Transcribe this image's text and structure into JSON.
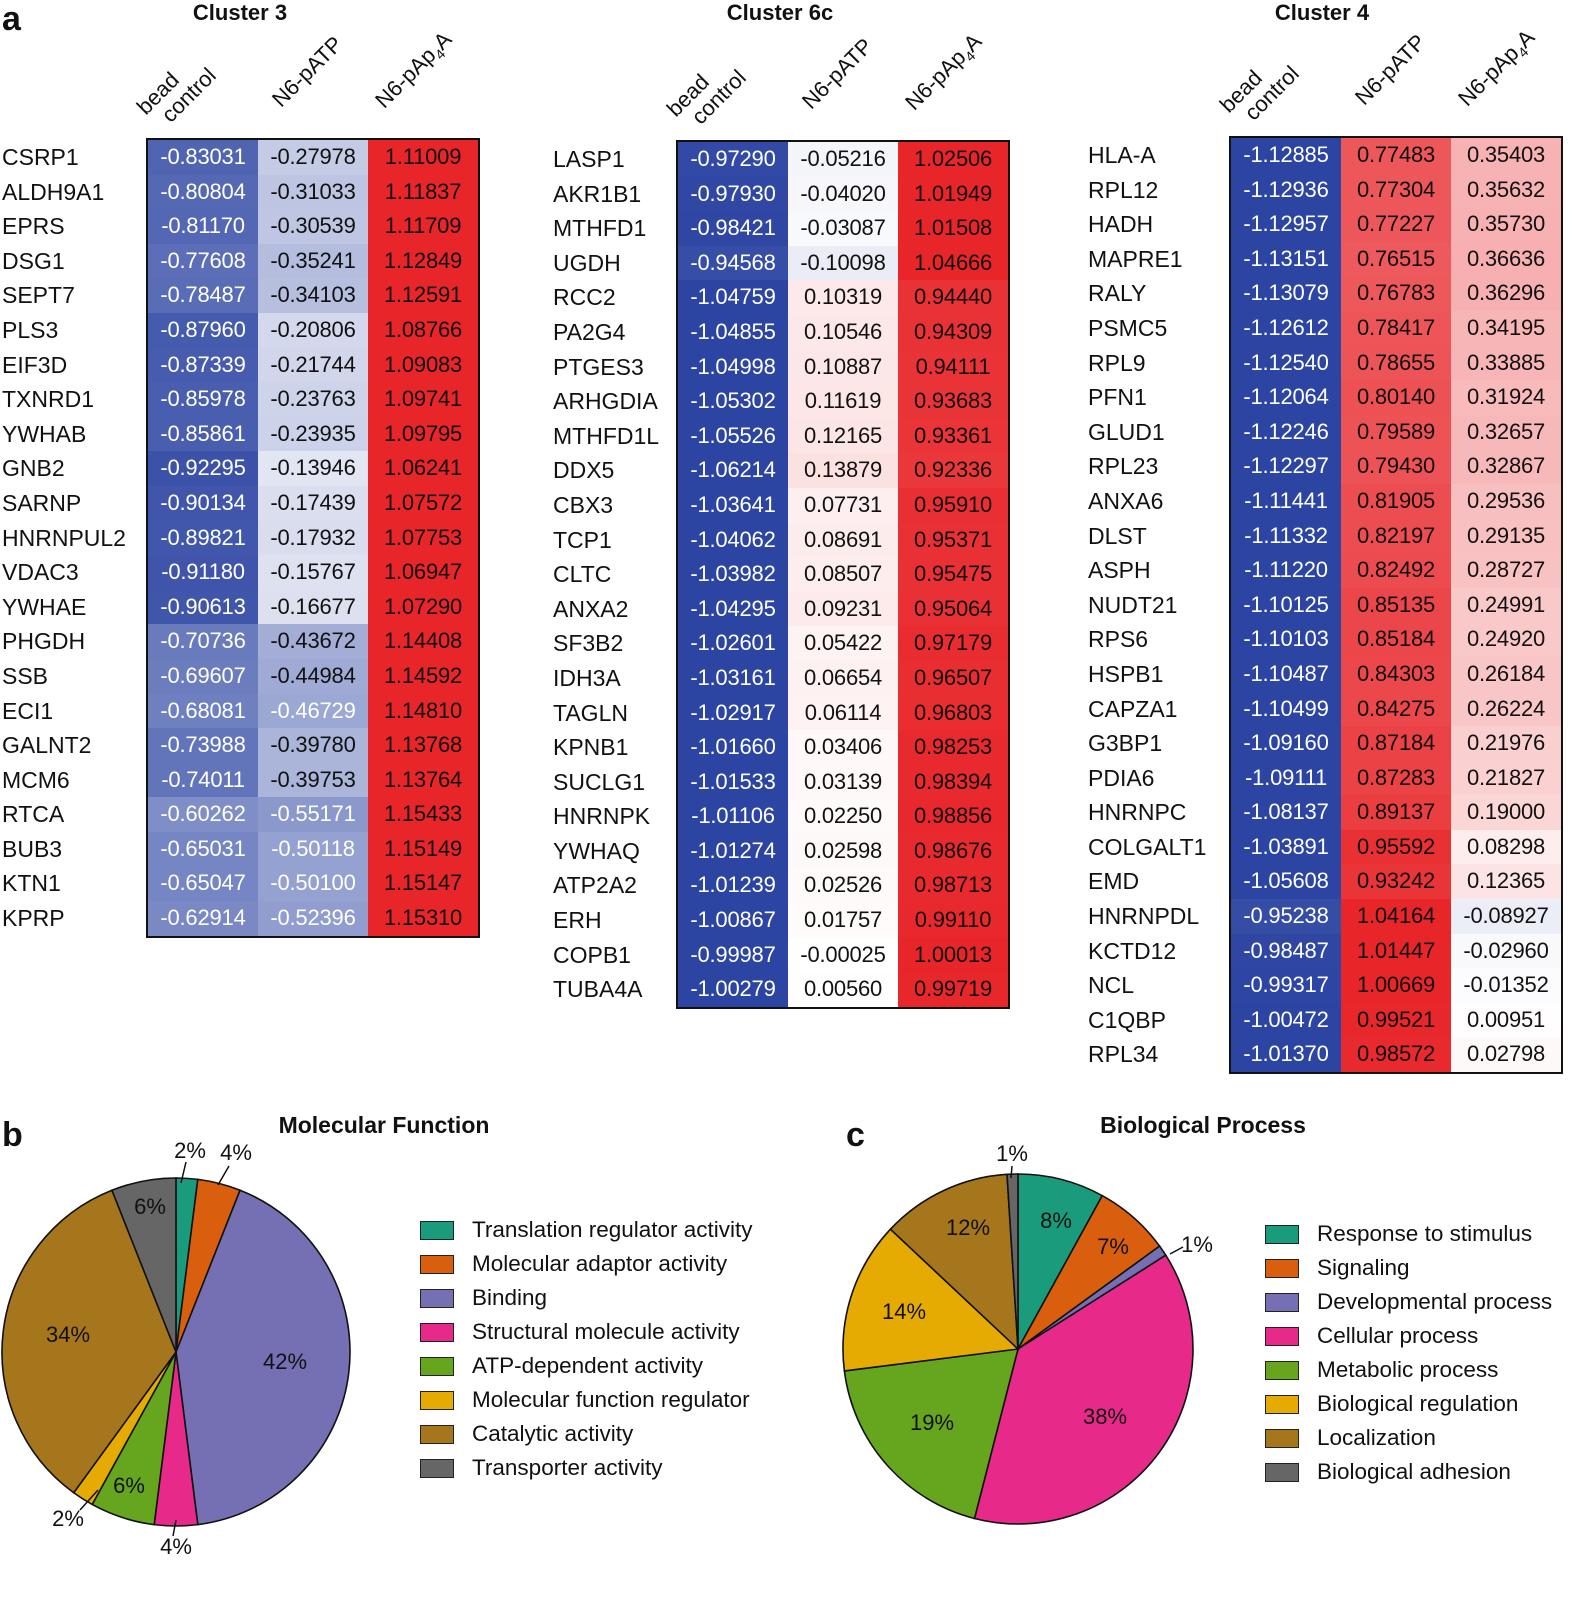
{
  "panel_letters": {
    "a": "a",
    "b": "b",
    "c": "c"
  },
  "column_headers": {
    "bead": "bead",
    "control": "control",
    "n6patp": "N6-pATP",
    "n6pap4a_base": "N6-pAp",
    "n6pap4a_sub": "4",
    "n6pap4a_tail": "A"
  },
  "color_scale": {
    "blue": "#2c44a2",
    "white": "#ffffff",
    "red": "#e8262a"
  },
  "chart_data": [
    {
      "type": "heatmap",
      "title": "Cluster 3",
      "columns": [
        "bead control",
        "N6-pATP",
        "N6-pAp4A"
      ],
      "rows": [
        {
          "label": "CSRP1",
          "values": [
            "-0.83031",
            "-0.27978",
            "1.11009"
          ]
        },
        {
          "label": "ALDH9A1",
          "values": [
            "-0.80804",
            "-0.31033",
            "1.11837"
          ]
        },
        {
          "label": "EPRS",
          "values": [
            "-0.81170",
            "-0.30539",
            "1.11709"
          ]
        },
        {
          "label": "DSG1",
          "values": [
            "-0.77608",
            "-0.35241",
            "1.12849"
          ]
        },
        {
          "label": "SEPT7",
          "values": [
            "-0.78487",
            "-0.34103",
            "1.12591"
          ]
        },
        {
          "label": "PLS3",
          "values": [
            "-0.87960",
            "-0.20806",
            "1.08766"
          ]
        },
        {
          "label": "EIF3D",
          "values": [
            "-0.87339",
            "-0.21744",
            "1.09083"
          ]
        },
        {
          "label": "TXNRD1",
          "values": [
            "-0.85978",
            "-0.23763",
            "1.09741"
          ]
        },
        {
          "label": "YWHAB",
          "values": [
            "-0.85861",
            "-0.23935",
            "1.09795"
          ]
        },
        {
          "label": "GNB2",
          "values": [
            "-0.92295",
            "-0.13946",
            "1.06241"
          ]
        },
        {
          "label": "SARNP",
          "values": [
            "-0.90134",
            "-0.17439",
            "1.07572"
          ]
        },
        {
          "label": "HNRNPUL2",
          "values": [
            "-0.89821",
            "-0.17932",
            "1.07753"
          ]
        },
        {
          "label": "VDAC3",
          "values": [
            "-0.91180",
            "-0.15767",
            "1.06947"
          ]
        },
        {
          "label": "YWHAE",
          "values": [
            "-0.90613",
            "-0.16677",
            "1.07290"
          ]
        },
        {
          "label": "PHGDH",
          "values": [
            "-0.70736",
            "-0.43672",
            "1.14408"
          ]
        },
        {
          "label": "SSB",
          "values": [
            "-0.69607",
            "-0.44984",
            "1.14592"
          ]
        },
        {
          "label": "ECI1",
          "values": [
            "-0.68081",
            "-0.46729",
            "1.14810"
          ]
        },
        {
          "label": "GALNT2",
          "values": [
            "-0.73988",
            "-0.39780",
            "1.13768"
          ]
        },
        {
          "label": "MCM6",
          "values": [
            "-0.74011",
            "-0.39753",
            "1.13764"
          ]
        },
        {
          "label": "RTCA",
          "values": [
            "-0.60262",
            "-0.55171",
            "1.15433"
          ]
        },
        {
          "label": "BUB3",
          "values": [
            "-0.65031",
            "-0.50118",
            "1.15149"
          ]
        },
        {
          "label": "KTN1",
          "values": [
            "-0.65047",
            "-0.50100",
            "1.15147"
          ]
        },
        {
          "label": "KPRP",
          "values": [
            "-0.62914",
            "-0.52396",
            "1.15310"
          ]
        }
      ]
    },
    {
      "type": "heatmap",
      "title": "Cluster 6c",
      "columns": [
        "bead control",
        "N6-pATP",
        "N6-pAp4A"
      ],
      "rows": [
        {
          "label": "LASP1",
          "values": [
            "-0.97290",
            "-0.05216",
            "1.02506"
          ]
        },
        {
          "label": "AKR1B1",
          "values": [
            "-0.97930",
            "-0.04020",
            "1.01949"
          ]
        },
        {
          "label": "MTHFD1",
          "values": [
            "-0.98421",
            "-0.03087",
            "1.01508"
          ]
        },
        {
          "label": "UGDH",
          "values": [
            "-0.94568",
            "-0.10098",
            "1.04666"
          ]
        },
        {
          "label": "RCC2",
          "values": [
            "-1.04759",
            "0.10319",
            "0.94440"
          ]
        },
        {
          "label": "PA2G4",
          "values": [
            "-1.04855",
            "0.10546",
            "0.94309"
          ]
        },
        {
          "label": "PTGES3",
          "values": [
            "-1.04998",
            "0.10887",
            "0.94111"
          ]
        },
        {
          "label": "ARHGDIA",
          "values": [
            "-1.05302",
            "0.11619",
            "0.93683"
          ]
        },
        {
          "label": "MTHFD1L",
          "values": [
            "-1.05526",
            "0.12165",
            "0.93361"
          ]
        },
        {
          "label": "DDX5",
          "values": [
            "-1.06214",
            "0.13879",
            "0.92336"
          ]
        },
        {
          "label": "CBX3",
          "values": [
            "-1.03641",
            "0.07731",
            "0.95910"
          ]
        },
        {
          "label": "TCP1",
          "values": [
            "-1.04062",
            "0.08691",
            "0.95371"
          ]
        },
        {
          "label": "CLTC",
          "values": [
            "-1.03982",
            "0.08507",
            "0.95475"
          ]
        },
        {
          "label": "ANXA2",
          "values": [
            "-1.04295",
            "0.09231",
            "0.95064"
          ]
        },
        {
          "label": "SF3B2",
          "values": [
            "-1.02601",
            "0.05422",
            "0.97179"
          ]
        },
        {
          "label": "IDH3A",
          "values": [
            "-1.03161",
            "0.06654",
            "0.96507"
          ]
        },
        {
          "label": "TAGLN",
          "values": [
            "-1.02917",
            "0.06114",
            "0.96803"
          ]
        },
        {
          "label": "KPNB1",
          "values": [
            "-1.01660",
            "0.03406",
            "0.98253"
          ]
        },
        {
          "label": "SUCLG1",
          "values": [
            "-1.01533",
            "0.03139",
            "0.98394"
          ]
        },
        {
          "label": "HNRNPK",
          "values": [
            "-1.01106",
            "0.02250",
            "0.98856"
          ]
        },
        {
          "label": "YWHAQ",
          "values": [
            "-1.01274",
            "0.02598",
            "0.98676"
          ]
        },
        {
          "label": "ATP2A2",
          "values": [
            "-1.01239",
            "0.02526",
            "0.98713"
          ]
        },
        {
          "label": "ERH",
          "values": [
            "-1.00867",
            "0.01757",
            "0.99110"
          ]
        },
        {
          "label": "COPB1",
          "values": [
            "-0.99987",
            "-0.00025",
            "1.00013"
          ]
        },
        {
          "label": "TUBA4A",
          "values": [
            "-1.00279",
            "0.00560",
            "0.99719"
          ]
        }
      ]
    },
    {
      "type": "heatmap",
      "title": "Cluster 4",
      "columns": [
        "bead control",
        "N6-pATP",
        "N6-pAp4A"
      ],
      "rows": [
        {
          "label": "HLA-A",
          "values": [
            "-1.12885",
            "0.77483",
            "0.35403"
          ]
        },
        {
          "label": "RPL12",
          "values": [
            "-1.12936",
            "0.77304",
            "0.35632"
          ]
        },
        {
          "label": "HADH",
          "values": [
            "-1.12957",
            "0.77227",
            "0.35730"
          ]
        },
        {
          "label": "MAPRE1",
          "values": [
            "-1.13151",
            "0.76515",
            "0.36636"
          ]
        },
        {
          "label": "RALY",
          "values": [
            "-1.13079",
            "0.76783",
            "0.36296"
          ]
        },
        {
          "label": "PSMC5",
          "values": [
            "-1.12612",
            "0.78417",
            "0.34195"
          ]
        },
        {
          "label": "RPL9",
          "values": [
            "-1.12540",
            "0.78655",
            "0.33885"
          ]
        },
        {
          "label": "PFN1",
          "values": [
            "-1.12064",
            "0.80140",
            "0.31924"
          ]
        },
        {
          "label": "GLUD1",
          "values": [
            "-1.12246",
            "0.79589",
            "0.32657"
          ]
        },
        {
          "label": "RPL23",
          "values": [
            "-1.12297",
            "0.79430",
            "0.32867"
          ]
        },
        {
          "label": "ANXA6",
          "values": [
            "-1.11441",
            "0.81905",
            "0.29536"
          ]
        },
        {
          "label": "DLST",
          "values": [
            "-1.11332",
            "0.82197",
            "0.29135"
          ]
        },
        {
          "label": "ASPH",
          "values": [
            "-1.11220",
            "0.82492",
            "0.28727"
          ]
        },
        {
          "label": "NUDT21",
          "values": [
            "-1.10125",
            "0.85135",
            "0.24991"
          ]
        },
        {
          "label": "RPS6",
          "values": [
            "-1.10103",
            "0.85184",
            "0.24920"
          ]
        },
        {
          "label": "HSPB1",
          "values": [
            "-1.10487",
            "0.84303",
            "0.26184"
          ]
        },
        {
          "label": "CAPZA1",
          "values": [
            "-1.10499",
            "0.84275",
            "0.26224"
          ]
        },
        {
          "label": "G3BP1",
          "values": [
            "-1.09160",
            "0.87184",
            "0.21976"
          ]
        },
        {
          "label": "PDIA6",
          "values": [
            "-1.09111",
            "0.87283",
            "0.21827"
          ]
        },
        {
          "label": "HNRNPC",
          "values": [
            "-1.08137",
            "0.89137",
            "0.19000"
          ]
        },
        {
          "label": "COLGALT1",
          "values": [
            "-1.03891",
            "0.95592",
            "0.08298"
          ]
        },
        {
          "label": "EMD",
          "values": [
            "-1.05608",
            "0.93242",
            "0.12365"
          ]
        },
        {
          "label": "HNRNPDL",
          "values": [
            "-0.95238",
            "1.04164",
            "-0.08927"
          ]
        },
        {
          "label": "KCTD12",
          "values": [
            "-0.98487",
            "1.01447",
            "-0.02960"
          ]
        },
        {
          "label": "NCL",
          "values": [
            "-0.99317",
            "1.00669",
            "-0.01352"
          ]
        },
        {
          "label": "C1QBP",
          "values": [
            "-1.00472",
            "0.99521",
            "0.00951"
          ]
        },
        {
          "label": "RPL34",
          "values": [
            "-1.01370",
            "0.98572",
            "0.02798"
          ]
        }
      ]
    },
    {
      "type": "pie",
      "title": "Molecular Function",
      "slices": [
        {
          "label": "Translation regulator activity",
          "value": 2,
          "text": "2%",
          "color": "#1a9b7c"
        },
        {
          "label": "Molecular adaptor activity",
          "value": 4,
          "text": "4%",
          "color": "#d95f0e"
        },
        {
          "label": "Binding",
          "value": 42,
          "text": "42%",
          "color": "#7570b3"
        },
        {
          "label": "Structural molecule activity",
          "value": 4,
          "text": "4%",
          "color": "#e7298a"
        },
        {
          "label": "ATP-dependent activity",
          "value": 6,
          "text": "6%",
          "color": "#66a61e"
        },
        {
          "label": "Molecular function regulator",
          "value": 2,
          "text": "2%",
          "color": "#e6ab02"
        },
        {
          "label": "Catalytic activity",
          "value": 34,
          "text": "34%",
          "color": "#a6761d"
        },
        {
          "label": "Transporter activity",
          "value": 6,
          "text": "6%",
          "color": "#666666"
        }
      ]
    },
    {
      "type": "pie",
      "title": "Biological Process",
      "slices": [
        {
          "label": "Response to stimulus",
          "value": 8,
          "text": "8%",
          "color": "#1a9b7c"
        },
        {
          "label": "Signaling",
          "value": 7,
          "text": "7%",
          "color": "#d95f0e"
        },
        {
          "label": "Developmental process",
          "value": 1,
          "text": "1%",
          "color": "#7570b3"
        },
        {
          "label": "Cellular process",
          "value": 38,
          "text": "38%",
          "color": "#e7298a"
        },
        {
          "label": "Metabolic process",
          "value": 19,
          "text": "19%",
          "color": "#66a61e"
        },
        {
          "label": "Biological regulation",
          "value": 14,
          "text": "14%",
          "color": "#e6ab02"
        },
        {
          "label": "Localization",
          "value": 12,
          "text": "12%",
          "color": "#a6761d"
        },
        {
          "label": "Biological adhesion",
          "value": 1,
          "text": "1%",
          "color": "#666666"
        }
      ]
    }
  ]
}
